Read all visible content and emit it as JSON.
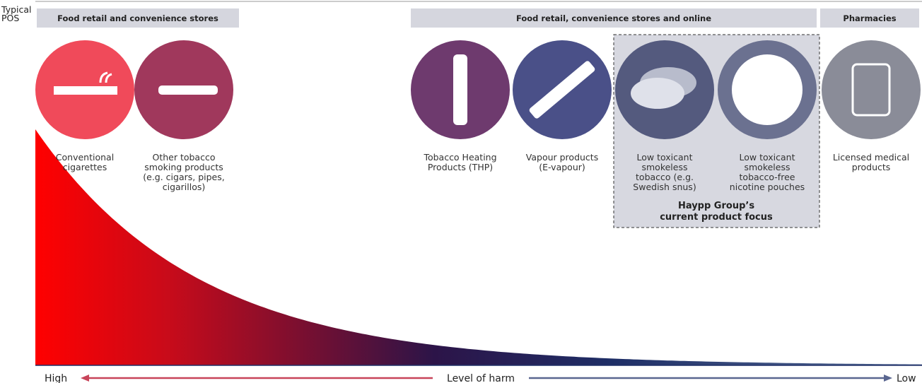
{
  "pos_label": [
    "Typical",
    "POS"
  ],
  "channels": [
    "Food retail and convenience stores",
    "Food retail, convenience stores and online",
    "Pharmacies"
  ],
  "products": [
    {
      "label": [
        "Conventional",
        "cigarettes"
      ]
    },
    {
      "label": [
        "Other tobacco",
        "smoking products",
        "(e.g. cigars, pipes,",
        "cigarillos)"
      ]
    },
    {
      "label": [
        "Tobacco Heating",
        "Products (THP)"
      ]
    },
    {
      "label": [
        "Vapour products",
        "(E-vapour)"
      ]
    },
    {
      "label": [
        "Low toxicant",
        "smokeless",
        "tobacco (e.g.",
        "Swedish snus)"
      ]
    },
    {
      "label": [
        "Low toxicant",
        "smokeless",
        "tobacco-free",
        "nicotine pouches"
      ]
    },
    {
      "label": [
        "Licensed medical",
        "products"
      ]
    }
  ],
  "focus": [
    "Haypp Group’s",
    "current product focus"
  ],
  "axis": {
    "high": "High",
    "title": "Level of harm",
    "low": "Low"
  }
}
